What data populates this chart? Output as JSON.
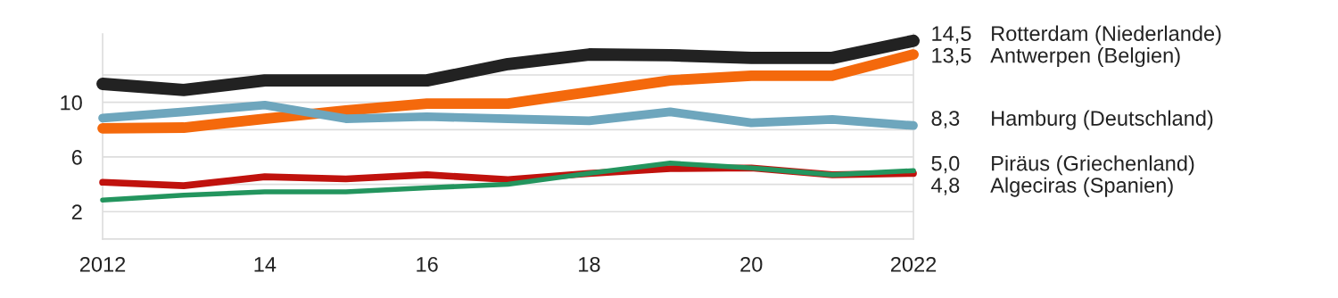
{
  "chart_data": {
    "type": "line",
    "x": [
      2012,
      2013,
      2014,
      2015,
      2016,
      2017,
      2018,
      2019,
      2020,
      2021,
      2022
    ],
    "series": [
      {
        "name": "Rotterdam (Niederlande)",
        "color": "#222222",
        "values": [
          11.35,
          10.9,
          11.6,
          11.6,
          11.6,
          12.8,
          13.5,
          13.45,
          13.25,
          13.25,
          14.5
        ],
        "value_labels": [
          null,
          null,
          null,
          null,
          null,
          null,
          null,
          null,
          null,
          null,
          "14,5"
        ]
      },
      {
        "name": "Antwerpen (Belgien)",
        "color": "#f4690c",
        "values": [
          8.1,
          8.15,
          8.8,
          9.4,
          9.9,
          9.9,
          10.75,
          11.6,
          11.95,
          11.95,
          13.5
        ],
        "value_labels": [
          null,
          null,
          null,
          null,
          null,
          null,
          null,
          null,
          null,
          null,
          "13,5"
        ]
      },
      {
        "name": "Hamburg (Deutschland)",
        "color": "#6ea6bd",
        "values": [
          8.85,
          9.3,
          9.8,
          8.8,
          8.95,
          8.8,
          8.65,
          9.3,
          8.5,
          8.75,
          8.3
        ],
        "value_labels": [
          null,
          null,
          null,
          null,
          null,
          null,
          null,
          null,
          null,
          null,
          "8,3"
        ]
      },
      {
        "name": "Algeciras (Spanien)",
        "color": "#c0120d",
        "values": [
          4.15,
          3.9,
          4.55,
          4.4,
          4.7,
          4.35,
          4.8,
          5.15,
          5.2,
          4.7,
          4.8
        ],
        "value_labels": [
          null,
          null,
          null,
          null,
          null,
          null,
          null,
          null,
          null,
          null,
          "4,8"
        ]
      },
      {
        "name": "Piräus (Griechenland)",
        "color": "#23955e",
        "values": [
          2.85,
          3.2,
          3.45,
          3.45,
          3.75,
          4.0,
          4.8,
          5.55,
          5.2,
          4.7,
          5.0
        ],
        "value_labels": [
          null,
          null,
          null,
          null,
          null,
          null,
          null,
          null,
          null,
          null,
          "5,0"
        ]
      }
    ],
    "xlim": [
      2012,
      2022
    ],
    "xticks": [
      {
        "value": 2012,
        "label": "2012"
      },
      {
        "value": 2014,
        "label": "14"
      },
      {
        "value": 2016,
        "label": "16"
      },
      {
        "value": 2018,
        "label": "18"
      },
      {
        "value": 2020,
        "label": "20"
      },
      {
        "value": 2022,
        "label": "2022"
      }
    ],
    "ylim": [
      0,
      15
    ],
    "yticks": [
      {
        "value": 0,
        "label": null
      },
      2,
      {
        "value": 4,
        "label": null
      },
      6,
      {
        "value": 8,
        "label": null
      },
      10,
      {
        "value": 12,
        "label": null
      }
    ],
    "grid": "y",
    "legend": false,
    "marker": "none",
    "line_style": "solid"
  }
}
